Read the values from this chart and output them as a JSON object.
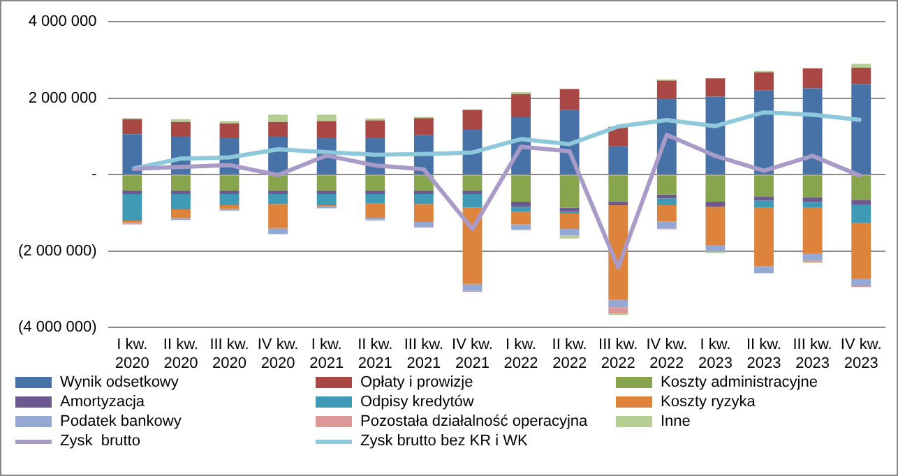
{
  "chart_data": {
    "type": "bar",
    "stacked": true,
    "categories": [
      "I kw. 2020",
      "II kw. 2020",
      "III kw. 2020",
      "IV kw. 2020",
      "I kw. 2021",
      "II kw. 2021",
      "III kw. 2021",
      "IV kw. 2021",
      "I kw. 2022",
      "II kw. 2022",
      "III kw. 2022",
      "IV kw. 2022",
      "I kw. 2023",
      "II kw. 2023",
      "III kw. 2023",
      "IV kw. 2023"
    ],
    "series": [
      {
        "name": "Wynik odsetkowy",
        "color": "#4672a8",
        "values": [
          1060000,
          990000,
          970000,
          990000,
          970000,
          970000,
          1040000,
          1190000,
          1500000,
          1690000,
          740000,
          1990000,
          2040000,
          2200000,
          2260000,
          2370000
        ]
      },
      {
        "name": "Opłaty i prowizje",
        "color": "#a84744",
        "values": [
          390000,
          390000,
          370000,
          390000,
          430000,
          450000,
          440000,
          510000,
          610000,
          550000,
          510000,
          470000,
          480000,
          480000,
          520000,
          430000
        ]
      },
      {
        "name": "Koszty administracyjne",
        "color": "#86a54c",
        "values": [
          -410000,
          -410000,
          -410000,
          -410000,
          -410000,
          -410000,
          -410000,
          -410000,
          -710000,
          -870000,
          -700000,
          -520000,
          -710000,
          -580000,
          -590000,
          -660000
        ]
      },
      {
        "name": "Amortyzacja",
        "color": "#6e5890",
        "values": [
          -100000,
          -100000,
          -100000,
          -100000,
          -100000,
          -100000,
          -100000,
          -100000,
          -130000,
          -100000,
          -100000,
          -100000,
          -130000,
          -100000,
          -130000,
          -120000
        ]
      },
      {
        "name": "Odpisy kredytów",
        "color": "#3f9bb5",
        "values": [
          -690000,
          -400000,
          -290000,
          -260000,
          -290000,
          -250000,
          -260000,
          -350000,
          -130000,
          -50000,
          0,
          -180000,
          0,
          -190000,
          -150000,
          -490000
        ]
      },
      {
        "name": "Koszty ryzyka",
        "color": "#dd833c",
        "values": [
          -50000,
          -230000,
          -100000,
          -630000,
          -30000,
          -370000,
          -470000,
          -2000000,
          -330000,
          -400000,
          -2480000,
          -430000,
          -1000000,
          -1530000,
          -1190000,
          -1460000
        ]
      },
      {
        "name": "Podatek bankowy",
        "color": "#95a8d3",
        "values": [
          -30000,
          -50000,
          -40000,
          -160000,
          -50000,
          -50000,
          -130000,
          -180000,
          -150000,
          -170000,
          -190000,
          -180000,
          -170000,
          -180000,
          -180000,
          -190000
        ]
      },
      {
        "name": "Pozostała działalność operacyjna",
        "color": "#dc9896",
        "values": [
          -20000,
          0,
          0,
          0,
          0,
          -20000,
          -20000,
          -30000,
          0,
          0,
          -170000,
          -20000,
          0,
          0,
          -50000,
          -20000
        ]
      },
      {
        "name": "Inne",
        "color": "#b5cf93",
        "values": [
          30000,
          70000,
          60000,
          190000,
          170000,
          50000,
          30000,
          0,
          50000,
          -80000,
          -30000,
          30000,
          -40000,
          30000,
          -20000,
          100000
        ]
      },
      {
        "name": "Zysk  brutto",
        "type": "line",
        "color": "#a99bc8",
        "values": [
          150000,
          200000,
          250000,
          -10000,
          500000,
          240000,
          140000,
          -1420000,
          730000,
          610000,
          -2430000,
          1040000,
          490000,
          100000,
          490000,
          -40000
        ]
      },
      {
        "name": "Zysk brutto bez KR i WK",
        "type": "line",
        "color": "#8dc9db",
        "values": [
          150000,
          420000,
          450000,
          660000,
          590000,
          520000,
          540000,
          580000,
          930000,
          800000,
          1260000,
          1430000,
          1270000,
          1630000,
          1570000,
          1430000
        ]
      }
    ],
    "ylim": [
      -4000000,
      4000000
    ],
    "yticks": [
      {
        "value": 4000000,
        "label": "4 000 000"
      },
      {
        "value": 2000000,
        "label": "2 000 000"
      },
      {
        "value": 0,
        "label": "-"
      },
      {
        "value": -2000000,
        "label": "(2 000 000)"
      },
      {
        "value": -4000000,
        "label": "(4 000 000)"
      }
    ],
    "grid": "y",
    "legend": "bottom",
    "marker": "none",
    "line_style": "solid"
  }
}
